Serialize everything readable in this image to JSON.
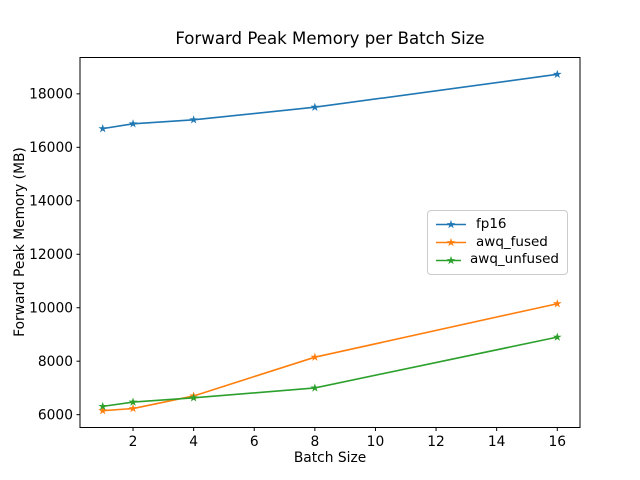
{
  "chart_data": {
    "type": "line",
    "title": "Forward Peak Memory per Batch Size",
    "xlabel": "Batch Size",
    "ylabel": "Forward Peak Memory (MB)",
    "x": [
      1,
      2,
      4,
      8,
      16
    ],
    "series": [
      {
        "name": "fp16",
        "color": "#1f77b4",
        "values": [
          16700,
          16880,
          17030,
          17500,
          18730
        ]
      },
      {
        "name": "awq_fused",
        "color": "#ff7f0e",
        "values": [
          6150,
          6230,
          6700,
          8150,
          10150
        ]
      },
      {
        "name": "awq_unfused",
        "color": "#2ca02c",
        "values": [
          6310,
          6470,
          6630,
          7000,
          8900
        ]
      }
    ],
    "marker": "star",
    "xlim": [
      0.25,
      16.75
    ],
    "ylim": [
      5520,
      19360
    ],
    "xticks": [
      2,
      4,
      6,
      8,
      10,
      12,
      14,
      16
    ],
    "yticks": [
      6000,
      8000,
      10000,
      12000,
      14000,
      16000,
      18000
    ],
    "grid": false,
    "legend_position": "center-right",
    "colors": {
      "background": "#ffffff",
      "spine": "#000000",
      "text": "#000000",
      "legend_border": "#cccccc"
    }
  }
}
